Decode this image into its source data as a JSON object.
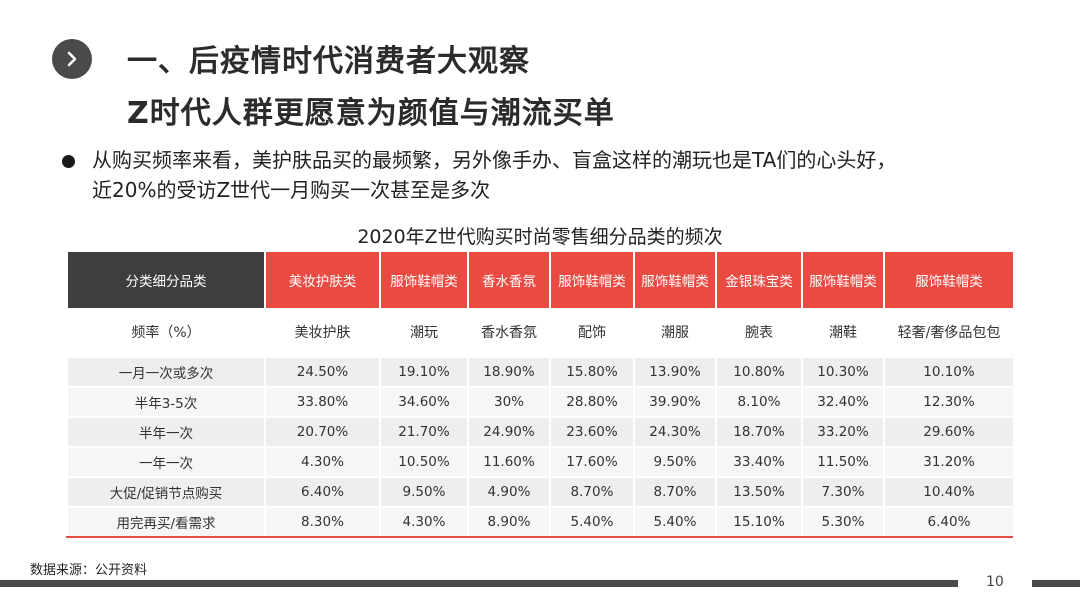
{
  "header": {
    "title_line1": "一、后疫情时代消费者大观察",
    "title_line2": "Z时代人群更愿意为颜值与潮流买单"
  },
  "bullet": {
    "line1": "从购买频率来看，美护肤品买的最频繁，另外像手办、盲盒这样的潮玩也是TA们的心头好，",
    "line2": "近20%的受访Z世代一月购买一次甚至是多次"
  },
  "table": {
    "title": "2020年Z世代购买时尚零售细分品类的频次",
    "header_first": "分类细分品类",
    "categories": [
      "美妆护肤类",
      "服饰鞋帽类",
      "香水香氛",
      "服饰鞋帽类",
      "服饰鞋帽类",
      "金银珠宝类",
      "服饰鞋帽类",
      "服饰鞋帽类"
    ],
    "sub_first": "频率（%）",
    "subcategories": [
      "美妆护肤",
      "潮玩",
      "香水香氛",
      "配饰",
      "潮服",
      "腕表",
      "潮鞋",
      "轻奢/奢侈品包包"
    ],
    "rows": [
      {
        "label": "一月一次或多次",
        "values": [
          "24.50%",
          "19.10%",
          "18.90%",
          "15.80%",
          "13.90%",
          "10.80%",
          "10.30%",
          "10.10%"
        ]
      },
      {
        "label": "半年3-5次",
        "values": [
          "33.80%",
          "34.60%",
          "30%",
          "28.80%",
          "39.90%",
          "8.10%",
          "32.40%",
          "12.30%"
        ]
      },
      {
        "label": "半年一次",
        "values": [
          "20.70%",
          "21.70%",
          "24.90%",
          "23.60%",
          "24.30%",
          "18.70%",
          "33.20%",
          "29.60%"
        ]
      },
      {
        "label": "一年一次",
        "values": [
          "4.30%",
          "10.50%",
          "11.60%",
          "17.60%",
          "9.50%",
          "33.40%",
          "11.50%",
          "31.20%"
        ]
      },
      {
        "label": "大促/促销节点购买",
        "values": [
          "6.40%",
          "9.50%",
          "4.90%",
          "8.70%",
          "8.70%",
          "13.50%",
          "7.30%",
          "10.40%"
        ]
      },
      {
        "label": "用完再买/看需求",
        "values": [
          "8.30%",
          "4.30%",
          "8.90%",
          "5.40%",
          "5.40%",
          "15.10%",
          "5.30%",
          "6.40%"
        ]
      }
    ]
  },
  "footer": {
    "source": "数据来源：公开资料",
    "page_number": "10"
  },
  "colors": {
    "accent": "#e94b43",
    "header_dark": "#3e3e3e",
    "footer_bar": "#4a4a4a"
  },
  "icons": {
    "nav": "chevron-right-icon"
  }
}
